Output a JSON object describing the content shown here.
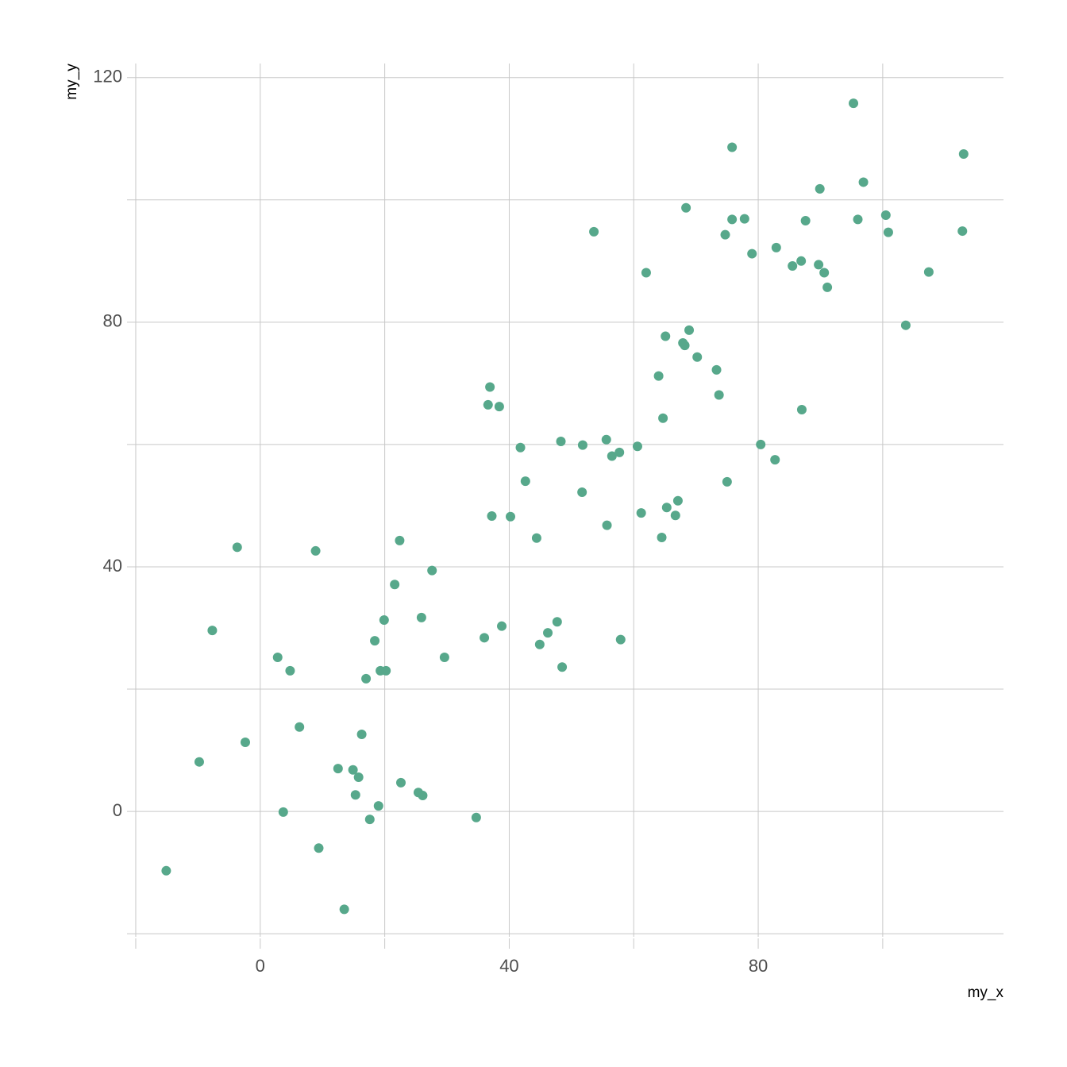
{
  "chart_data": {
    "type": "scatter",
    "x_label": "my_x",
    "y_label": "my_y",
    "color": "#57a88b",
    "grid": true,
    "xlim": [
      -21.4,
      119.4
    ],
    "ylim": [
      -20.5,
      122.3
    ],
    "xticks": [
      0,
      40,
      80
    ],
    "yticks": [
      0,
      40,
      80,
      120
    ],
    "xticks_minor": [
      -20,
      20,
      60,
      100
    ],
    "yticks_minor": [
      -20,
      20,
      60,
      100
    ],
    "x": [
      -15.1,
      -9.8,
      -7.7,
      -3.7,
      -2.4,
      2.8,
      3.7,
      4.8,
      6.3,
      8.9,
      9.4,
      12.5,
      13.5,
      14.9,
      15.3,
      15.8,
      16.3,
      17.0,
      17.6,
      18.4,
      19.0,
      19.3,
      19.9,
      20.2,
      21.6,
      22.4,
      22.6,
      25.4,
      25.9,
      26.1,
      27.6,
      29.6,
      34.7,
      36.0,
      36.6,
      36.9,
      37.2,
      38.4,
      38.8,
      40.2,
      41.8,
      42.6,
      44.4,
      44.9,
      46.2,
      47.7,
      48.3,
      48.5,
      51.7,
      51.8,
      53.6,
      55.6,
      55.7,
      56.5,
      57.7,
      57.9,
      60.6,
      61.2,
      62.0,
      64.0,
      64.5,
      64.7,
      65.1,
      65.3,
      66.7,
      67.1,
      67.9,
      68.2,
      68.4,
      68.9,
      70.2,
      73.3,
      73.7,
      74.7,
      75.0,
      75.8,
      75.8,
      77.8,
      79.0,
      80.4,
      82.7,
      82.9,
      85.5,
      86.9,
      87.0,
      87.6,
      89.7,
      89.9,
      90.6,
      91.1,
      95.3,
      96.0,
      96.9,
      100.5,
      100.9,
      103.7,
      107.4,
      112.8,
      113.0
    ],
    "values": [
      -9.7,
      8.1,
      29.6,
      43.2,
      11.3,
      25.2,
      -0.1,
      23.0,
      13.8,
      42.6,
      -6.0,
      7.0,
      -16.0,
      6.8,
      2.7,
      5.6,
      12.6,
      21.7,
      -1.3,
      27.9,
      0.9,
      23.0,
      31.3,
      23.0,
      37.1,
      44.3,
      4.7,
      3.1,
      31.7,
      2.6,
      39.4,
      25.2,
      -1.0,
      28.4,
      66.5,
      69.4,
      48.3,
      66.2,
      30.3,
      48.2,
      59.5,
      54.0,
      44.7,
      27.3,
      29.2,
      31.0,
      60.5,
      23.6,
      52.2,
      59.9,
      94.8,
      60.8,
      46.8,
      58.1,
      58.7,
      28.1,
      59.7,
      48.8,
      88.1,
      71.2,
      44.8,
      64.3,
      77.7,
      49.7,
      48.4,
      50.8,
      76.6,
      76.2,
      98.7,
      78.7,
      74.3,
      72.2,
      68.1,
      94.3,
      53.9,
      108.6,
      96.8,
      96.9,
      91.2,
      60.0,
      57.5,
      92.2,
      89.2,
      90.0,
      65.7,
      96.6,
      89.4,
      101.8,
      88.1,
      85.7,
      115.8,
      96.8,
      102.9,
      97.5,
      94.7,
      79.5,
      88.2,
      94.9,
      107.5
    ]
  }
}
